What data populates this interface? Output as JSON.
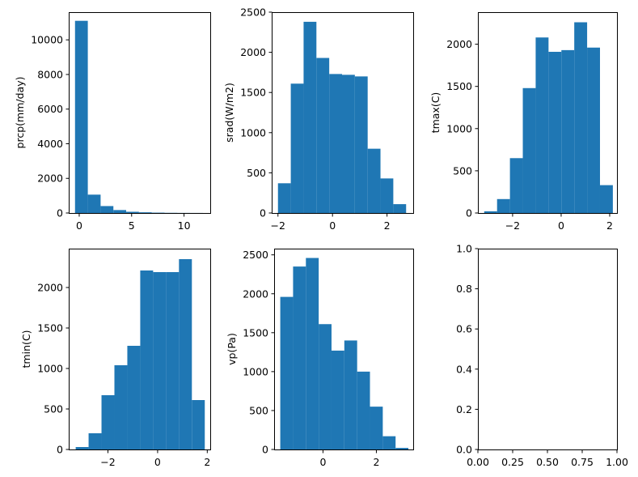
{
  "chart_data": [
    {
      "type": "bar",
      "ylabel": "prcp(mm/day)",
      "xlim": [
        -1,
        12.5
      ],
      "ylim": [
        0,
        11600
      ],
      "xticks": [
        0,
        5,
        10
      ],
      "xtick_labels": [
        "0",
        "5",
        "10"
      ],
      "yticks": [
        0,
        2000,
        4000,
        6000,
        8000,
        10000
      ],
      "ytick_labels": [
        "0",
        "2000",
        "4000",
        "6000",
        "8000",
        "10000"
      ],
      "bin_edges": [
        -0.4,
        0.82,
        2.04,
        3.26,
        4.48,
        5.7,
        6.92,
        8.14,
        9.36,
        10.58,
        11.8
      ],
      "counts": [
        11100,
        1060,
        400,
        170,
        70,
        40,
        20,
        10,
        5,
        3
      ],
      "color": "#1f77b4"
    },
    {
      "type": "bar",
      "ylabel": "srad(W/m2)",
      "xlim": [
        -2.23,
        2.96
      ],
      "ylim": [
        0,
        2500
      ],
      "xticks": [
        -2,
        0,
        2
      ],
      "xtick_labels": [
        "−2",
        "0",
        "2"
      ],
      "yticks": [
        0,
        500,
        1000,
        1500,
        2000,
        2500
      ],
      "ytick_labels": [
        "0",
        "500",
        "1000",
        "1500",
        "2000",
        "2500"
      ],
      "bin_edges": [
        -2.0,
        -1.53,
        -1.06,
        -0.59,
        -0.12,
        0.35,
        0.82,
        1.29,
        1.76,
        2.23,
        2.7
      ],
      "counts": [
        370,
        1610,
        2380,
        1930,
        1730,
        1720,
        1700,
        800,
        430,
        110
      ],
      "color": "#1f77b4"
    },
    {
      "type": "bar",
      "ylabel": "tmax(C)",
      "xlim": [
        -3.43,
        2.3
      ],
      "ylim": [
        0,
        2380
      ],
      "xticks": [
        -2,
        0,
        2
      ],
      "xtick_labels": [
        "−2",
        "0",
        "2"
      ],
      "yticks": [
        0,
        500,
        1000,
        1500,
        2000
      ],
      "ytick_labels": [
        "0",
        "500",
        "1000",
        "1500",
        "2000"
      ],
      "bin_edges": [
        -3.17,
        -2.64,
        -2.11,
        -1.58,
        -1.05,
        -0.52,
        0.01,
        0.54,
        1.07,
        1.6,
        2.13
      ],
      "counts": [
        20,
        165,
        650,
        1480,
        2080,
        1910,
        1930,
        2260,
        1960,
        330
      ],
      "color": "#1f77b4"
    },
    {
      "type": "bar",
      "ylabel": "tmin(C)",
      "xlim": [
        -3.58,
        2.12
      ],
      "ylim": [
        0,
        2480
      ],
      "xticks": [
        -2,
        0,
        2
      ],
      "xtick_labels": [
        "−2",
        "0",
        "2"
      ],
      "yticks": [
        0,
        500,
        1000,
        1500,
        2000
      ],
      "ytick_labels": [
        "0",
        "500",
        "1000",
        "1500",
        "2000"
      ],
      "bin_edges": [
        -3.3,
        -2.78,
        -2.26,
        -1.74,
        -1.22,
        -0.7,
        -0.18,
        0.34,
        0.86,
        1.38,
        1.9
      ],
      "counts": [
        30,
        200,
        670,
        1040,
        1280,
        2210,
        2190,
        2190,
        2350,
        610
      ],
      "color": "#1f77b4"
    },
    {
      "type": "bar",
      "ylabel": "vp(Pa)",
      "xlim": [
        -1.83,
        3.38
      ],
      "ylim": [
        0,
        2580
      ],
      "xticks": [
        0,
        2
      ],
      "xtick_labels": [
        "0",
        "2"
      ],
      "yticks": [
        0,
        500,
        1000,
        1500,
        2000,
        2500
      ],
      "ytick_labels": [
        "0",
        "500",
        "1000",
        "1500",
        "2000",
        "2500"
      ],
      "bin_edges": [
        -1.6,
        -1.12,
        -0.64,
        -0.16,
        0.32,
        0.8,
        1.28,
        1.76,
        2.24,
        2.72,
        3.2
      ],
      "counts": [
        1960,
        2350,
        2460,
        1610,
        1270,
        1400,
        1000,
        550,
        170,
        20
      ],
      "color": "#1f77b4"
    },
    {
      "type": "bar",
      "ylabel": "",
      "xlim": [
        0,
        1
      ],
      "ylim": [
        0,
        1
      ],
      "xticks": [
        0,
        0.25,
        0.5,
        0.75,
        1.0
      ],
      "xtick_labels": [
        "0.00",
        "0.25",
        "0.50",
        "0.75",
        "1.00"
      ],
      "yticks": [
        0,
        0.2,
        0.4,
        0.6,
        0.8,
        1.0
      ],
      "ytick_labels": [
        "0.0",
        "0.2",
        "0.4",
        "0.6",
        "0.8",
        "1.0"
      ],
      "bin_edges": [],
      "counts": [],
      "color": "#1f77b4"
    }
  ]
}
